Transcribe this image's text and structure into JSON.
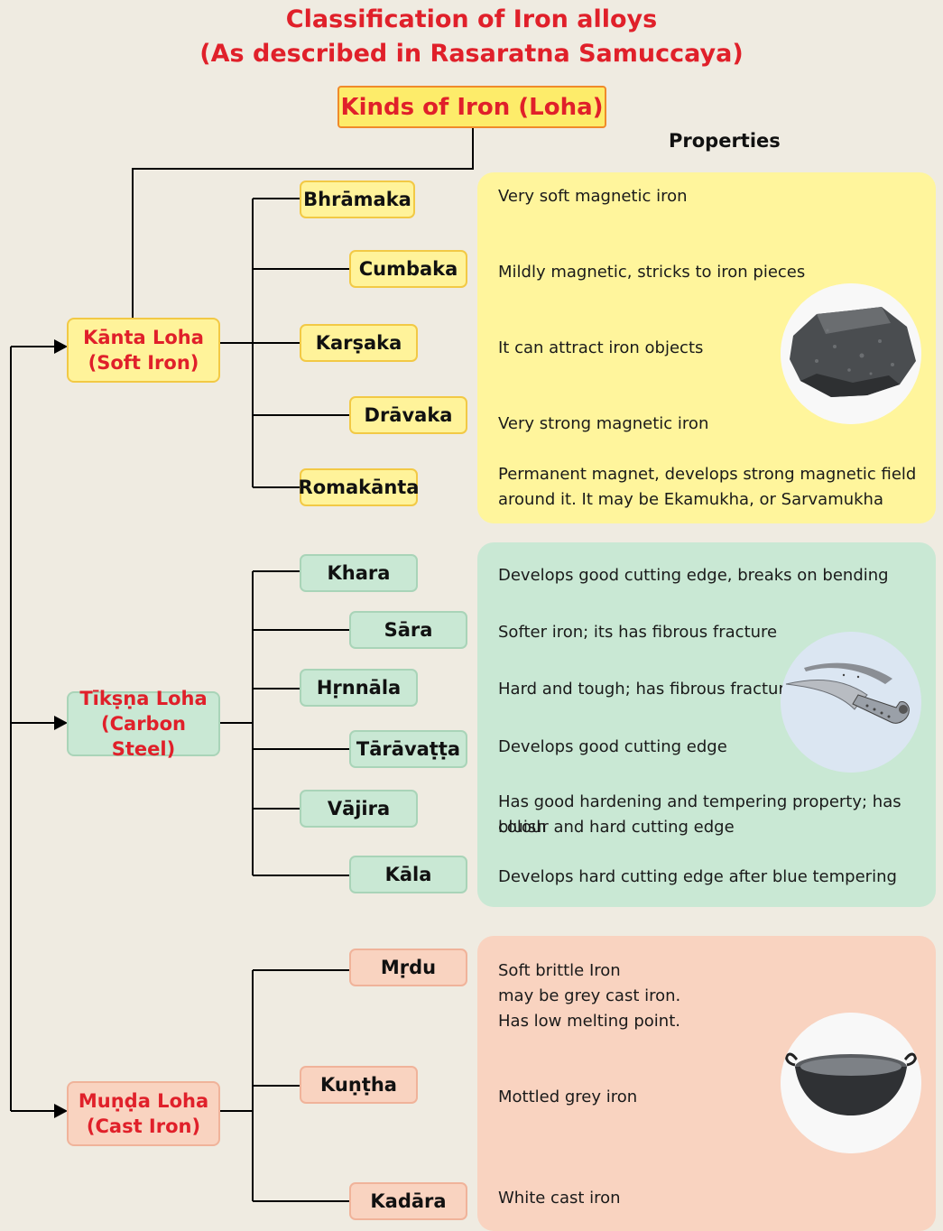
{
  "title": {
    "line1": "Classification of Iron alloys",
    "line2": "(As described in Rasaratna Samuccaya)"
  },
  "root": {
    "label": "Kinds of Iron (Loha)"
  },
  "properties_heading": "Properties",
  "categories": {
    "kanta": {
      "line1": "Kānta Loha",
      "line2": "(Soft Iron)"
    },
    "tiksna": {
      "line1": "Tīkṣṇa Loha",
      "line2": "(Carbon Steel)"
    },
    "munda": {
      "line1": "Muṇḍa Loha",
      "line2": "(Cast Iron)"
    }
  },
  "types": {
    "bhramaka": "Bhrāmaka",
    "cumbaka": "Cumbaka",
    "karsaka": "Karṣaka",
    "dravaka": "Drāvaka",
    "romakanta": "Romakānta",
    "khara": "Khara",
    "sara": "Sāra",
    "hrnnala": "Hṛnnāla",
    "taravatta": "Tārāvaṭṭa",
    "vajira": "Vājira",
    "kala": "Kāla",
    "mrdu": "Mṛdu",
    "kuntha": "Kuṇṭha",
    "kadara": "Kadāra"
  },
  "properties": {
    "bhramaka": "Very soft magnetic iron",
    "cumbaka": "Mildly magnetic, stricks to iron pieces",
    "karsaka": "It can attract iron objects",
    "dravaka": "Very strong magnetic iron",
    "romakanta_1": "Permanent magnet, develops strong magnetic field",
    "romakanta_2": "around it. It may be Ekamukha, or Sarvamukha",
    "khara": "Develops good cutting edge, breaks on bending",
    "sara": "Softer iron; its has fibrous fracture",
    "hrnnala": "Hard and tough; has fibrous fracture",
    "taravatta": "Develops good cutting edge",
    "vajira_1": "Has good hardening and tempering property; has bluish",
    "vajira_2": "colour and hard cutting edge",
    "kala": "Develops hard cutting edge after blue tempering",
    "mrdu_1": "Soft brittle Iron",
    "mrdu_2": "may be grey cast iron.",
    "mrdu_3": "Has low melting point.",
    "kuntha": "Mottled grey iron",
    "kadara": "White cast iron"
  },
  "colors": {
    "title": "#e0202a",
    "soft_iron_panel": "#fff59c",
    "carbon_steel_panel": "#c9e8d4",
    "cast_iron_panel": "#f9d3c0",
    "connector": "#000000"
  },
  "icons": {
    "soft_iron": "magnetite-rock-icon",
    "carbon_steel": "curved-dagger-icon",
    "cast_iron": "iron-wok-icon"
  }
}
